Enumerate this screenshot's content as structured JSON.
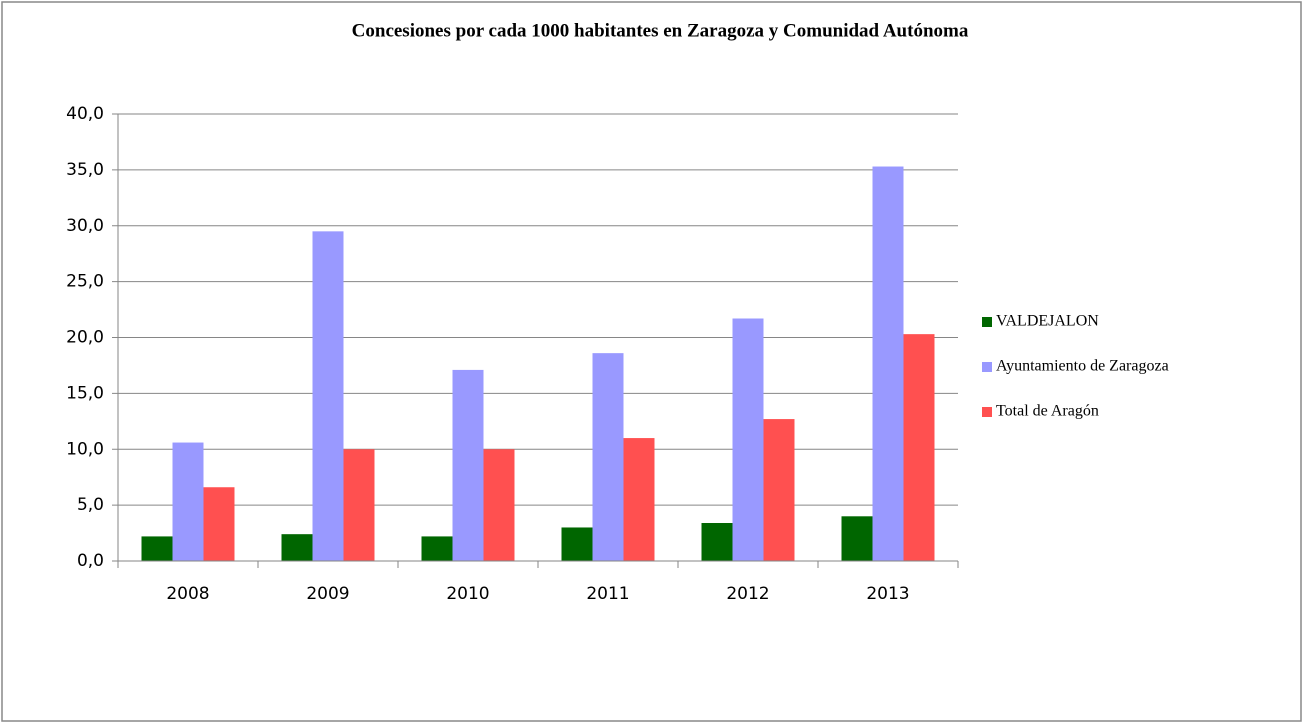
{
  "chart_data": {
    "type": "bar",
    "title": "Concesiones por cada 1000 habitantes en Zaragoza y Comunidad Autónoma",
    "categories": [
      "2008",
      "2009",
      "2010",
      "2011",
      "2012",
      "2013"
    ],
    "series": [
      {
        "name": "VALDEJALON",
        "color": "#006600",
        "values": [
          2.2,
          2.4,
          2.2,
          3.0,
          3.4,
          4.0
        ]
      },
      {
        "name": "Ayuntamiento de Zaragoza",
        "color": "#9999ff",
        "values": [
          10.6,
          29.5,
          17.1,
          18.6,
          21.7,
          35.3
        ]
      },
      {
        "name": "Total de Aragón",
        "color": "#ff5050",
        "values": [
          6.6,
          10.0,
          10.0,
          11.0,
          12.7,
          20.3
        ]
      }
    ],
    "ylim": [
      0,
      40
    ],
    "yticks": [
      {
        "value": 0,
        "label": "0,0"
      },
      {
        "value": 5,
        "label": "5,0"
      },
      {
        "value": 10,
        "label": "10,0"
      },
      {
        "value": 15,
        "label": "15,0"
      },
      {
        "value": 20,
        "label": "20,0"
      },
      {
        "value": 25,
        "label": "25,0"
      },
      {
        "value": 30,
        "label": "30,0"
      },
      {
        "value": 35,
        "label": "35,0"
      },
      {
        "value": 40,
        "label": "40,0"
      }
    ],
    "grid": true,
    "legend": "right"
  }
}
